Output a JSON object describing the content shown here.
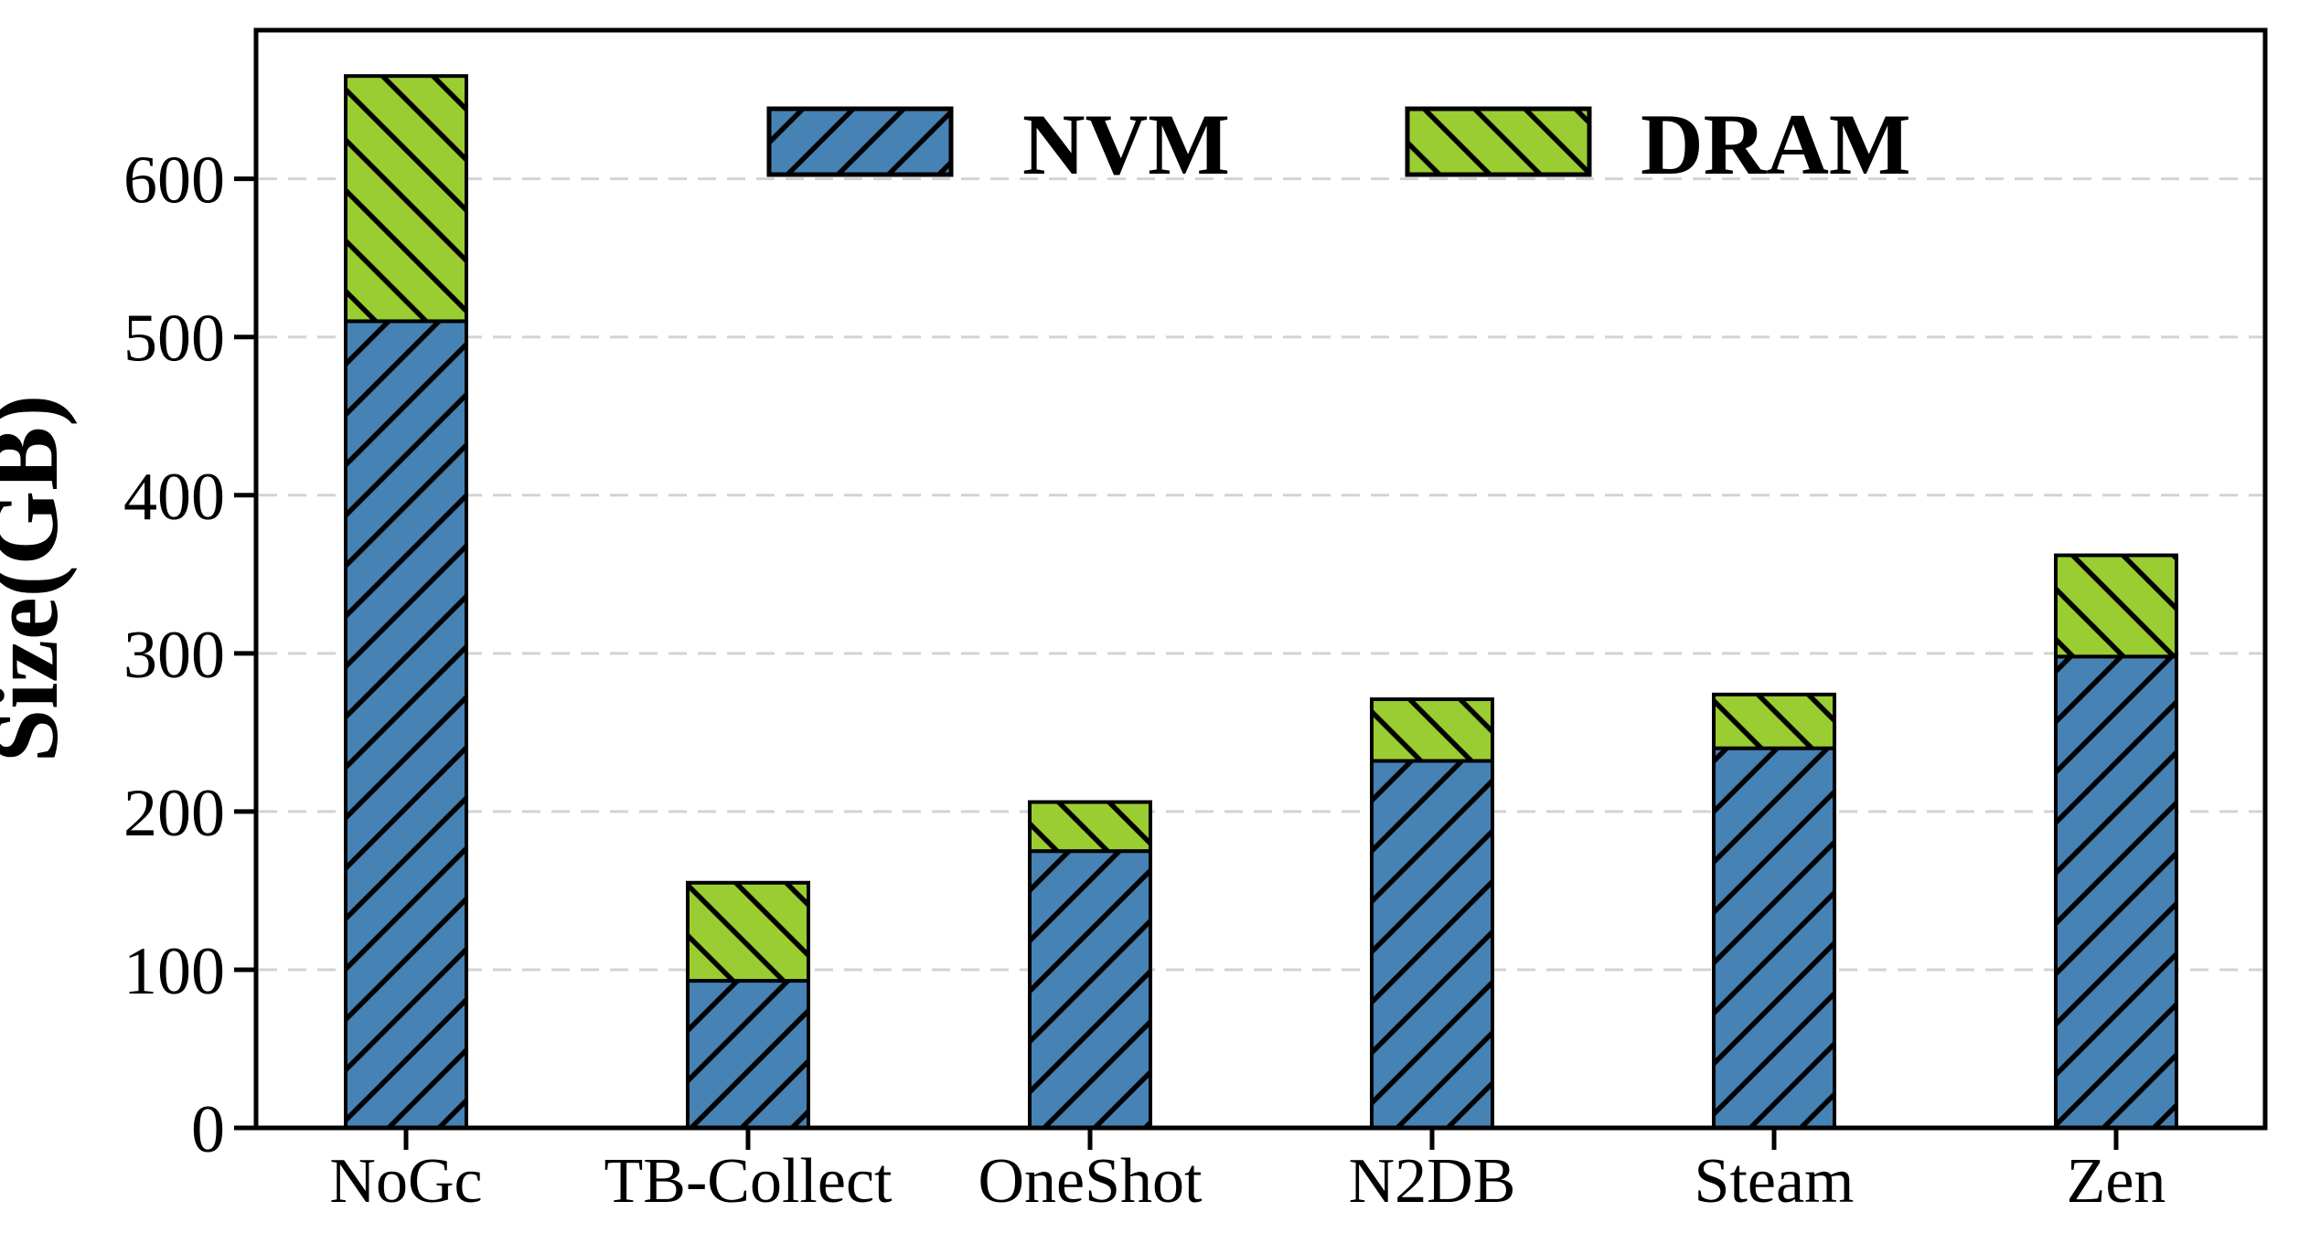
{
  "figure": {
    "background": "#ffffff"
  },
  "chart_data": {
    "type": "bar",
    "stacked": true,
    "title": "",
    "xlabel": "",
    "ylabel": "Size(GB)",
    "categories": [
      "NoGc",
      "TB-Collect",
      "OneShot",
      "N2DB",
      "Steam",
      "Zen"
    ],
    "series": [
      {
        "name": "NVM",
        "color": "#4682b4",
        "hatch": "/",
        "values": [
          510,
          93,
          175,
          232,
          240,
          298
        ]
      },
      {
        "name": "DRAM",
        "color": "#9acd32",
        "hatch": "\\",
        "values": [
          155,
          62,
          31,
          39,
          34,
          64
        ]
      }
    ],
    "totals": [
      665,
      155,
      206,
      271,
      274,
      362
    ],
    "ylim": [
      0,
      694
    ],
    "yticks": [
      0,
      100,
      200,
      300,
      400,
      500,
      600
    ],
    "y_tick_labels": [
      "0",
      "100",
      "200",
      "300",
      "400",
      "500",
      "600"
    ],
    "grid": {
      "axis": "y",
      "style": "dashed",
      "color": "#d3d3d3"
    },
    "legend": {
      "position": "upper center",
      "frame": false,
      "entries": [
        "NVM",
        "DRAM"
      ]
    }
  },
  "colors": {
    "edge": "#000000",
    "grid": "#d3d3d3",
    "text": "#000000",
    "nvm": "#4682b4",
    "dram": "#9acd32"
  }
}
